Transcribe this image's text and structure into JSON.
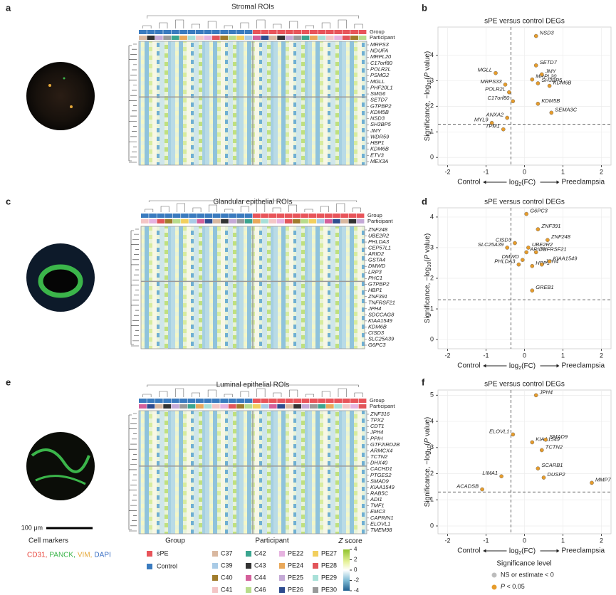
{
  "panel_labels": [
    "a",
    "b",
    "c",
    "d",
    "e",
    "f"
  ],
  "scale_bar": "100 μm",
  "heatmaps": [
    {
      "title": "Stromal ROIs",
      "track_labels": [
        "Group",
        "Participant"
      ],
      "genes": [
        "MRPS3",
        "NDUFA",
        "MRPL20",
        "C17orf80",
        "POLR2L",
        "PSMG2",
        "MGLL",
        "PHF20L1",
        "SMG6",
        "SETD7",
        "GTPBP2",
        "KDM5B",
        "NSD3",
        "SH3BP5",
        "JMY",
        "WDR59",
        "HBP1",
        "KDM6B",
        "ETV3",
        "MEX3A"
      ]
    },
    {
      "title": "Glandular epithelial ROIs",
      "track_labels": [
        "Group",
        "Participant"
      ],
      "genes": [
        "ZNF248",
        "UBE2R2",
        "PHLDA3",
        "CEP57L1",
        "ARID2",
        "GSTA4",
        "DMWD",
        "LRP3",
        "PHC1",
        "GTPBP2",
        "HBP1",
        "ZNF391",
        "TNFRSF21",
        "JPH4",
        "SDCCAG8",
        "KIAA1549",
        "KDM6B",
        "CISD3",
        "SLC25A39",
        "G6PC3"
      ]
    },
    {
      "title": "Luminal epithelial ROIs",
      "track_labels": [
        "Group",
        "Participant"
      ],
      "genes": [
        "ZNF316",
        "TPX2",
        "CDT1",
        "JPH4",
        "PPIH",
        "GTF2IRD2B",
        "ARMCX4",
        "TCTN2",
        "DHX40",
        "CACHD1",
        "PTGES2",
        "SMAD9",
        "KIAA1549",
        "RAB5C",
        "ADI1",
        "TMF1",
        "EMC3",
        "CAPRIN1",
        "ELOVL1",
        "TMEM98"
      ]
    }
  ],
  "chart_data": [
    {
      "type": "scatter",
      "title": "sPE versus control DEGs",
      "y_label": [
        "Significance, −log",
        "10",
        "(",
        "P",
        " value)"
      ],
      "x_label": {
        "left": "Control",
        "middle": [
          "log",
          "2",
          "(FC)"
        ],
        "right": "Preeclampsia"
      },
      "xlim": [
        -2.25,
        2.25
      ],
      "xticks": [
        -2,
        -1,
        0,
        1,
        2
      ],
      "ylim": [
        -0.3,
        5.1
      ],
      "yticks": [
        0,
        1,
        2,
        3,
        4
      ],
      "grid": true,
      "vline": -0.35,
      "hline": 1.3,
      "series": [
        {
          "color": "#e69c2c",
          "labels": [
            "NSD3",
            "SETD7",
            "MGLL",
            "MRPL20",
            "JMY",
            "MRPS33",
            "SH3BP5",
            "KDM6B",
            "POLR2L",
            "C17orf80",
            "KDM5B",
            "SEMA3C",
            "ANXA2",
            "MYL9",
            "TPM1"
          ],
          "x": [
            0.3,
            0.3,
            -0.75,
            0.2,
            0.45,
            -0.5,
            0.35,
            0.65,
            -0.4,
            -0.3,
            0.35,
            0.7,
            -0.45,
            -0.85,
            -0.55
          ],
          "values": [
            4.75,
            3.6,
            3.3,
            3.05,
            3.25,
            2.85,
            2.9,
            2.8,
            2.55,
            2.2,
            2.1,
            1.75,
            1.55,
            1.35,
            1.1
          ]
        }
      ]
    },
    {
      "type": "scatter",
      "title": "sPE versus control DEGs",
      "y_label": [
        "Significance, −log",
        "10",
        "(",
        "P",
        " value)"
      ],
      "x_label": {
        "left": "Control",
        "middle": [
          "log",
          "2",
          "(FC)"
        ],
        "right": "Preeclampsia"
      },
      "xlim": [
        -2.25,
        2.25
      ],
      "xticks": [
        -2,
        -1,
        0,
        1,
        2
      ],
      "ylim": [
        -0.3,
        4.3
      ],
      "yticks": [
        0,
        1,
        2,
        3,
        4
      ],
      "grid": true,
      "vline": -0.35,
      "hline": 1.3,
      "series": [
        {
          "color": "#e69c2c",
          "labels": [
            "G6PC3",
            "ZNF391",
            "ZNF248",
            "CISD3",
            "SLC25A39",
            "UBE2R2",
            "ARID2",
            "TNFRSF21",
            "DMWD",
            "PHLDA3",
            "HBP1",
            "JPH4",
            "KIAA1549",
            "GREB1"
          ],
          "x": [
            0.05,
            0.35,
            0.6,
            -0.25,
            -0.45,
            0.1,
            0.05,
            0.3,
            -0.05,
            -0.15,
            0.2,
            0.45,
            0.65,
            0.2
          ],
          "values": [
            4.1,
            3.6,
            3.25,
            3.15,
            3.0,
            3.0,
            2.85,
            2.85,
            2.6,
            2.45,
            2.4,
            2.45,
            2.55,
            1.6
          ]
        }
      ]
    },
    {
      "type": "scatter",
      "title": "sPE versus control DEGs",
      "y_label": [
        "Significance, −log",
        "10",
        "(",
        "P",
        " value)"
      ],
      "x_label": {
        "left": "Control",
        "middle": [
          "log",
          "2",
          "(FC)"
        ],
        "right": "Preeclampsia"
      },
      "xlim": [
        -2.25,
        2.25
      ],
      "xticks": [
        -2,
        -1,
        0,
        1,
        2
      ],
      "ylim": [
        -0.3,
        5.2
      ],
      "yticks": [
        0,
        1,
        2,
        3,
        4,
        5
      ],
      "grid": true,
      "vline": -0.35,
      "hline": 1.3,
      "series": [
        {
          "color": "#e69c2c",
          "labels": [
            "JPH4",
            "ELOVL1",
            "KIAA1549",
            "SMAD9",
            "TCTN2",
            "SCARB1",
            "DUSP2",
            "MMP7",
            "LIMA1",
            "ACADSB"
          ],
          "x": [
            0.3,
            -0.3,
            0.2,
            0.55,
            0.45,
            0.35,
            0.5,
            1.75,
            -0.6,
            -1.1
          ],
          "values": [
            5.0,
            3.5,
            3.2,
            3.3,
            2.9,
            2.2,
            1.85,
            1.65,
            1.9,
            1.4
          ]
        }
      ]
    }
  ],
  "legend": {
    "cell_markers": {
      "title": "Cell markers",
      "items": [
        {
          "text": "CD31,",
          "color": "#e8453c"
        },
        {
          "text": "PANCK,",
          "color": "#3bb54a"
        },
        {
          "text": "VIM,",
          "color": "#e6a93a"
        },
        {
          "text": "DAPI",
          "color": "#3a6fc4"
        }
      ]
    },
    "group": {
      "title": "Group",
      "items": [
        {
          "text": "sPE",
          "color": "#e8545a"
        },
        {
          "text": "Control",
          "color": "#3a7bbf"
        }
      ]
    },
    "participant": {
      "title": "Participant",
      "items": [
        {
          "text": "C37",
          "color": "#d9b8a0"
        },
        {
          "text": "C39",
          "color": "#a9cbe6"
        },
        {
          "text": "C40",
          "color": "#a07c2c"
        },
        {
          "text": "C41",
          "color": "#f4c6c6"
        },
        {
          "text": "C42",
          "color": "#3aa58f"
        },
        {
          "text": "C43",
          "color": "#333333"
        },
        {
          "text": "C44",
          "color": "#d45f9a"
        },
        {
          "text": "C46",
          "color": "#b8dc8c"
        },
        {
          "text": "PE22",
          "color": "#e6b3e0"
        },
        {
          "text": "PE24",
          "color": "#e9a85a"
        },
        {
          "text": "PE25",
          "color": "#c4a9d6"
        },
        {
          "text": "PE26",
          "color": "#2e4c8f"
        },
        {
          "text": "PE27",
          "color": "#f2cf5e"
        },
        {
          "text": "PE28",
          "color": "#e2555a"
        },
        {
          "text": "PE29",
          "color": "#a8e0d8"
        },
        {
          "text": "PE30",
          "color": "#999999"
        }
      ]
    },
    "zscore": {
      "title": [
        "Z",
        " score"
      ],
      "zlim": [
        -4,
        4
      ],
      "ticks": [
        4,
        2,
        0,
        -2,
        -4
      ]
    },
    "significance": {
      "title": "Significance level",
      "items": [
        {
          "text": "NS or estimate < 0",
          "color": "#bdbdbd"
        },
        {
          "text": [
            "P",
            " < 0.05"
          ],
          "color": "#e69c2c"
        }
      ]
    }
  }
}
